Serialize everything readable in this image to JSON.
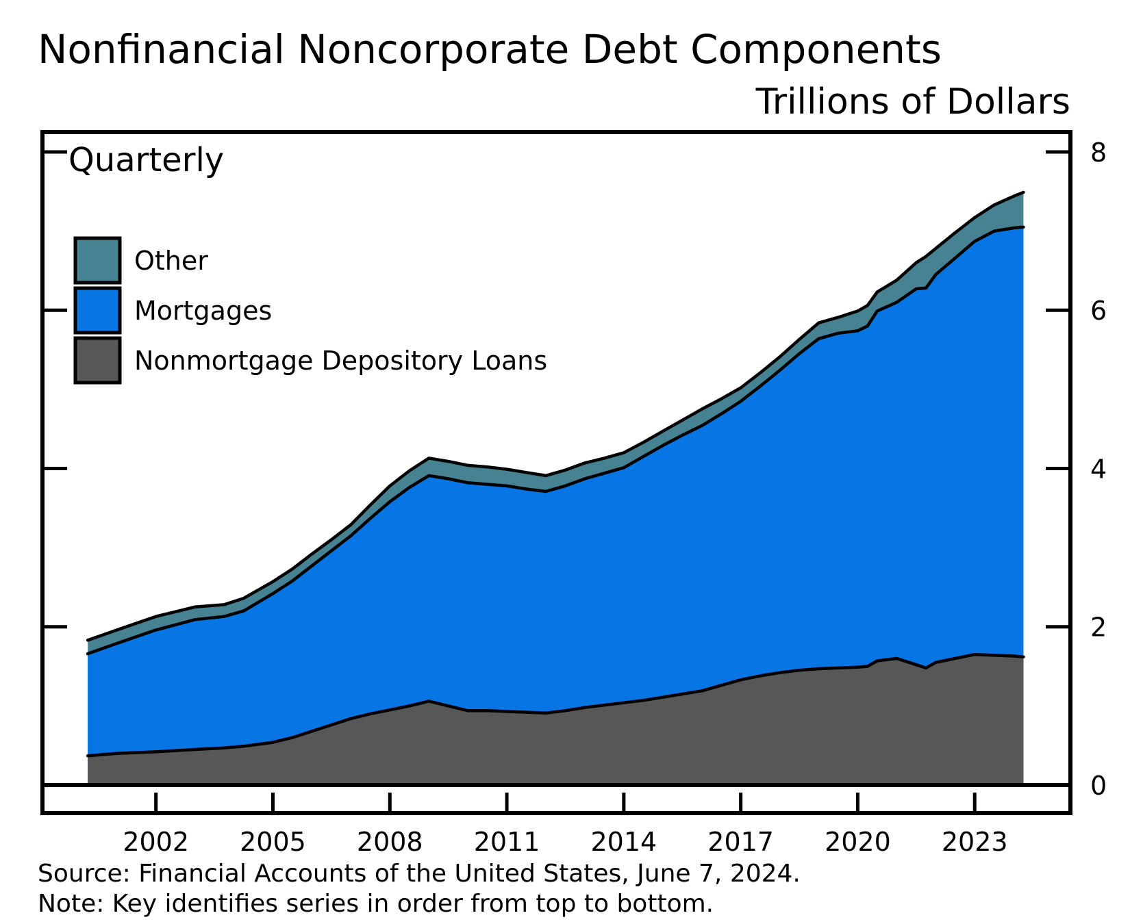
{
  "title": "Nonfinancial Noncorporate Debt Components",
  "units_label": "Trillions of Dollars",
  "frequency_label": "Quarterly",
  "source_line": "Source: Financial Accounts of the United States, June 7, 2024.",
  "note_line": "Note: Key identifies series in order from top to bottom.",
  "legend": [
    {
      "label": "Other",
      "color": "#478293"
    },
    {
      "label": "Mortgages",
      "color": "#0776e4"
    },
    {
      "label": "Nonmortgage Depository Loans",
      "color": "#575757"
    }
  ],
  "chart_data": {
    "type": "area",
    "stacked": true,
    "frequency": "quarterly",
    "title": "Nonfinancial Noncorporate Debt Components",
    "ylabel": "Trillions of Dollars",
    "xlabel": "",
    "grid": false,
    "legend_position": "top-left",
    "xlim": [
      1999.1,
      2025.45
    ],
    "ylim": [
      0,
      8
    ],
    "yticks": [
      0,
      2,
      4,
      6,
      8
    ],
    "xticks": [
      2002,
      2005,
      2008,
      2011,
      2014,
      2017,
      2020,
      2023
    ],
    "x": [
      2000.25,
      2001.0,
      2002.0,
      2003.0,
      2003.75,
      2004.25,
      2005.0,
      2005.5,
      2006.0,
      2006.5,
      2007.0,
      2007.5,
      2008.0,
      2008.5,
      2009.0,
      2009.5,
      2010.0,
      2010.5,
      2011.0,
      2011.5,
      2012.0,
      2012.5,
      2013.0,
      2013.5,
      2014.0,
      2014.5,
      2015.0,
      2015.5,
      2016.0,
      2016.5,
      2017.0,
      2017.5,
      2018.0,
      2018.5,
      2019.0,
      2019.5,
      2020.0,
      2020.25,
      2020.5,
      2021.0,
      2021.5,
      2021.75,
      2022.0,
      2022.5,
      2023.0,
      2023.5,
      2024.0,
      2024.25
    ],
    "series": [
      {
        "name": "Nonmortgage Depository Loans",
        "color": "#575757",
        "values": [
          0.37,
          0.4,
          0.42,
          0.45,
          0.47,
          0.49,
          0.54,
          0.6,
          0.68,
          0.76,
          0.84,
          0.9,
          0.95,
          1.0,
          1.06,
          1.0,
          0.94,
          0.94,
          0.93,
          0.92,
          0.91,
          0.94,
          0.98,
          1.01,
          1.04,
          1.07,
          1.11,
          1.15,
          1.19,
          1.26,
          1.33,
          1.38,
          1.42,
          1.45,
          1.47,
          1.48,
          1.49,
          1.5,
          1.57,
          1.6,
          1.52,
          1.48,
          1.55,
          1.6,
          1.65,
          1.64,
          1.63,
          1.62
        ]
      },
      {
        "name": "Mortgages",
        "color": "#0776e4",
        "values": [
          1.29,
          1.39,
          1.54,
          1.64,
          1.66,
          1.71,
          1.88,
          1.98,
          2.09,
          2.2,
          2.31,
          2.47,
          2.63,
          2.76,
          2.85,
          2.87,
          2.88,
          2.86,
          2.85,
          2.82,
          2.8,
          2.84,
          2.89,
          2.93,
          2.97,
          3.08,
          3.18,
          3.27,
          3.35,
          3.43,
          3.52,
          3.66,
          3.82,
          4.0,
          4.17,
          4.23,
          4.25,
          4.3,
          4.42,
          4.5,
          4.75,
          4.8,
          4.9,
          5.06,
          5.22,
          5.36,
          5.41,
          5.43
        ]
      },
      {
        "name": "Other",
        "color": "#478293",
        "values": [
          0.17,
          0.17,
          0.17,
          0.16,
          0.15,
          0.16,
          0.15,
          0.15,
          0.15,
          0.14,
          0.14,
          0.17,
          0.2,
          0.21,
          0.22,
          0.22,
          0.22,
          0.22,
          0.21,
          0.21,
          0.2,
          0.2,
          0.2,
          0.19,
          0.19,
          0.18,
          0.18,
          0.19,
          0.21,
          0.19,
          0.17,
          0.17,
          0.17,
          0.18,
          0.2,
          0.2,
          0.25,
          0.26,
          0.24,
          0.28,
          0.33,
          0.4,
          0.33,
          0.32,
          0.3,
          0.33,
          0.4,
          0.44
        ]
      }
    ]
  }
}
